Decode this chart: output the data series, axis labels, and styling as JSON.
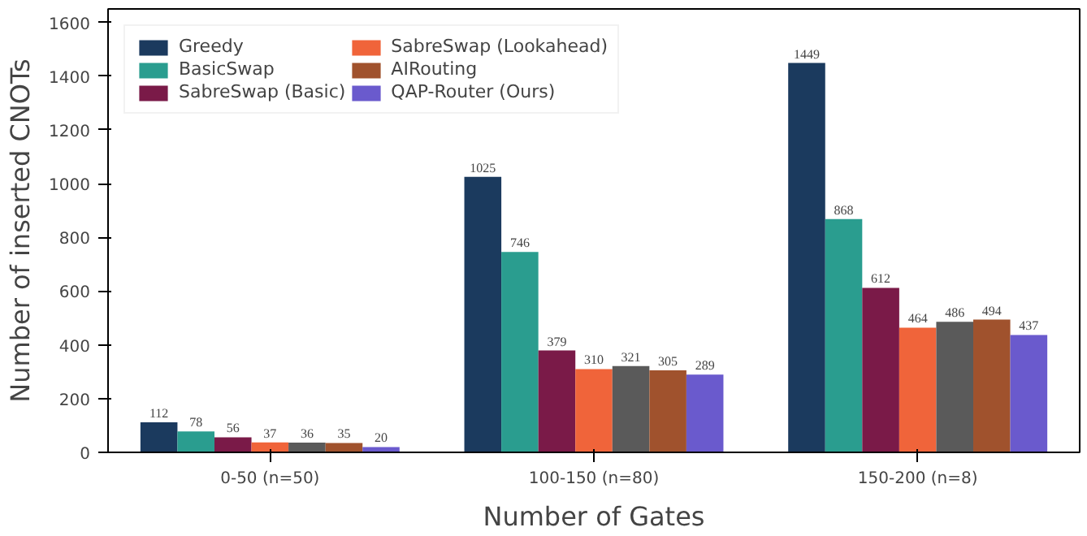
{
  "chart_data": {
    "type": "bar",
    "xlabel": "Number of Gates",
    "ylabel": "Number of inserted CNOTs",
    "categories": [
      "0-50 (n=50)",
      "100-150 (n=80)",
      "150-200 (n=8)"
    ],
    "series": [
      {
        "name": "Greedy",
        "color": "#1b3a5e",
        "values": [
          112,
          1025,
          1449
        ]
      },
      {
        "name": "BasicSwap",
        "color": "#2a9d8f",
        "values": [
          78,
          746,
          868
        ]
      },
      {
        "name": "SabreSwap (Basic)",
        "color": "#7a1a48",
        "values": [
          56,
          379,
          612
        ]
      },
      {
        "name": "SabreSwap (Lookahead)",
        "color": "#f0643a",
        "values": [
          37,
          310,
          464
        ]
      },
      {
        "color": "#5a5a5a",
        "values": [
          36,
          321,
          486
        ]
      },
      {
        "name": "AIRouting",
        "color": "#a0522d",
        "values": [
          35,
          305,
          494
        ]
      },
      {
        "name": "QAP-Router (Ours)",
        "color": "#6a5acd",
        "values": [
          20,
          289,
          437
        ]
      }
    ],
    "ylim": [
      0,
      1650
    ],
    "yticks": [
      0,
      200,
      400,
      600,
      800,
      1000,
      1200,
      1400,
      1600
    ],
    "data_labels": true,
    "legend": "top left",
    "grid": false
  }
}
